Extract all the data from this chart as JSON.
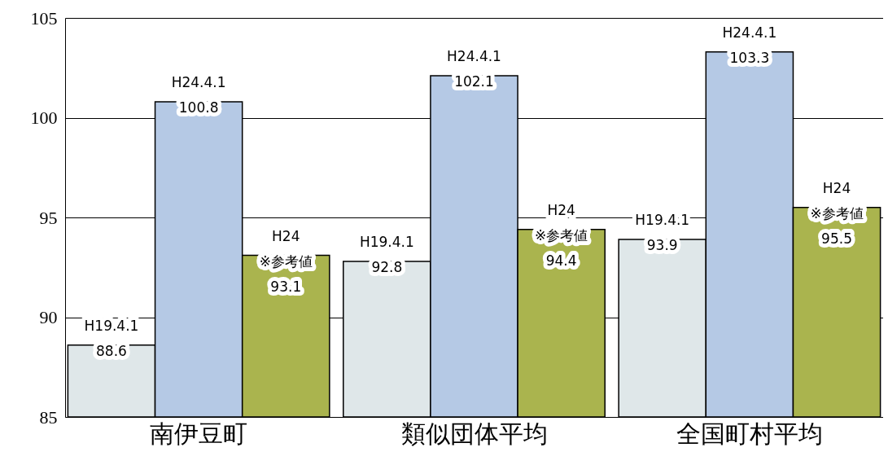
{
  "chart_data": {
    "type": "bar",
    "categories": [
      "南伊豆町",
      "類似団体平均",
      "全国町村平均"
    ],
    "series": [
      {
        "name": "H19.4.1",
        "color": "#dfe7e9",
        "values": [
          88.6,
          92.8,
          93.9
        ]
      },
      {
        "name": "H24.4.1",
        "color": "#b5c9e5",
        "values": [
          100.8,
          102.1,
          103.3
        ]
      },
      {
        "name": "H24 ※参考値",
        "color": "#aab44e",
        "values": [
          93.1,
          94.4,
          95.5
        ]
      }
    ],
    "ylim": [
      85,
      105
    ],
    "yticks": [
      85,
      90,
      95,
      100,
      105
    ],
    "grid": "y",
    "data_labels": true
  }
}
